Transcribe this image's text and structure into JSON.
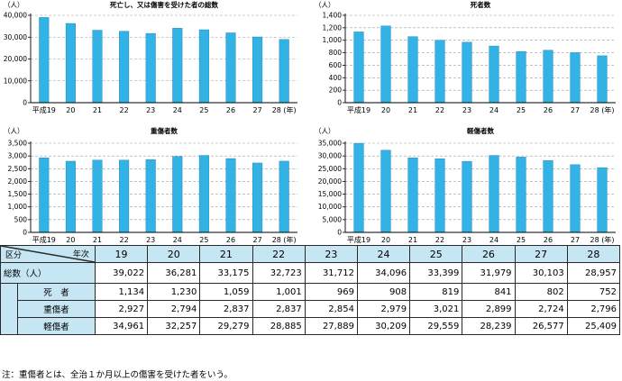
{
  "colors": {
    "bar": "#33b2e6",
    "bar_edge": "#1b7fb4",
    "header": "#c7e6f4",
    "grid": "#9e9e9e"
  },
  "chart_data": [
    {
      "type": "bar",
      "title": "死亡し、又は傷害を受けた者の総数",
      "unit": "（人）",
      "categories": [
        "平成19",
        "20",
        "21",
        "22",
        "23",
        "24",
        "25",
        "26",
        "27",
        "28 (年)"
      ],
      "values": [
        39022,
        36281,
        33175,
        32723,
        31712,
        34096,
        33399,
        31979,
        30103,
        28957
      ],
      "ylim": [
        0,
        40000
      ],
      "yticks": [
        "0",
        "10,000",
        "20,000",
        "30,000",
        "40,000"
      ],
      "ytick_values": [
        0,
        10000,
        20000,
        30000,
        40000
      ]
    },
    {
      "type": "bar",
      "title": "死者数",
      "unit": "（人）",
      "categories": [
        "平成19",
        "20",
        "21",
        "22",
        "23",
        "24",
        "25",
        "26",
        "27",
        "28 (年)"
      ],
      "values": [
        1134,
        1230,
        1059,
        1001,
        969,
        908,
        819,
        841,
        802,
        752
      ],
      "ylim": [
        0,
        1400
      ],
      "yticks": [
        "0",
        "200",
        "400",
        "600",
        "800",
        "1,000",
        "1,200",
        "1,400"
      ],
      "ytick_values": [
        0,
        200,
        400,
        600,
        800,
        1000,
        1200,
        1400
      ]
    },
    {
      "type": "bar",
      "title": "重傷者数",
      "unit": "（人）",
      "categories": [
        "平成19",
        "20",
        "21",
        "22",
        "23",
        "24",
        "25",
        "26",
        "27",
        "28 (年)"
      ],
      "values": [
        2927,
        2794,
        2837,
        2837,
        2854,
        2979,
        3021,
        2899,
        2724,
        2796
      ],
      "ylim": [
        0,
        3500
      ],
      "yticks": [
        "0",
        "500",
        "1,000",
        "1,500",
        "2,000",
        "2,500",
        "3,000",
        "3,500"
      ],
      "ytick_values": [
        0,
        500,
        1000,
        1500,
        2000,
        2500,
        3000,
        3500
      ]
    },
    {
      "type": "bar",
      "title": "軽傷者数",
      "unit": "（人）",
      "categories": [
        "平成19",
        "20",
        "21",
        "22",
        "23",
        "24",
        "25",
        "26",
        "27",
        "28 (年)"
      ],
      "values": [
        34961,
        32257,
        29279,
        28885,
        27889,
        30209,
        29559,
        28239,
        26577,
        25409
      ],
      "ylim": [
        0,
        35000
      ],
      "yticks": [
        "0",
        "5,000",
        "10,000",
        "15,000",
        "20,000",
        "25,000",
        "30,000",
        "35,000"
      ],
      "ytick_values": [
        0,
        5000,
        10000,
        15000,
        20000,
        25000,
        30000,
        35000
      ]
    }
  ],
  "table": {
    "corner_top": "年次",
    "corner_bottom": "区分",
    "years": [
      "19",
      "20",
      "21",
      "22",
      "23",
      "24",
      "25",
      "26",
      "27",
      "28"
    ],
    "rows": [
      {
        "label": "総数（人）",
        "values": [
          "39,022",
          "36,281",
          "33,175",
          "32,723",
          "31,712",
          "34,096",
          "33,399",
          "31,979",
          "30,103",
          "28,957"
        ]
      },
      {
        "label": "死　者",
        "values": [
          "1,134",
          "1,230",
          "1,059",
          "1,001",
          "969",
          "908",
          "819",
          "841",
          "802",
          "752"
        ]
      },
      {
        "label": "重傷者",
        "values": [
          "2,927",
          "2,794",
          "2,837",
          "2,837",
          "2,854",
          "2,979",
          "3,021",
          "2,899",
          "2,724",
          "2,796"
        ]
      },
      {
        "label": "軽傷者",
        "values": [
          "34,961",
          "32,257",
          "29,279",
          "28,885",
          "27,889",
          "30,209",
          "29,559",
          "28,239",
          "26,577",
          "25,409"
        ]
      }
    ]
  },
  "note": "注：重傷者とは、全治１か月以上の傷害を受けた者をいう。"
}
